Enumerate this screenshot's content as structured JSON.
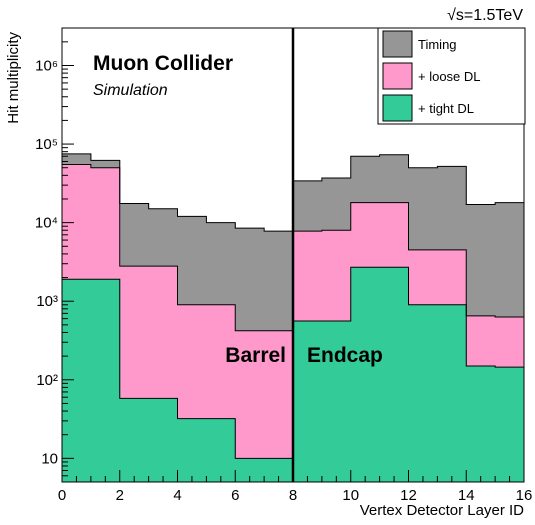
{
  "chart_data": {
    "type": "area",
    "title": "",
    "energy_label": "√s=1.5TeV",
    "experiment_label": "Muon Collider",
    "experiment_sublabel": "Simulation",
    "region_labels": [
      "Barrel",
      "Endcap"
    ],
    "xlabel": "Vertex Detector Layer ID",
    "ylabel": "Hit multiplicity",
    "xlim": [
      0,
      16
    ],
    "ylim": [
      5,
      3000000
    ],
    "yscale": "log",
    "x_ticks": [
      "0",
      "2",
      "4",
      "6",
      "8",
      "10",
      "12",
      "14",
      "16"
    ],
    "y_ticks": [
      "10",
      "10²",
      "10³",
      "10⁴",
      "10⁵",
      "10⁶"
    ],
    "grid": false,
    "legend_position": "top-right",
    "bin_edges": [
      0,
      1,
      2,
      3,
      4,
      5,
      6,
      7,
      8,
      9,
      10,
      11,
      12,
      13,
      14,
      15,
      16
    ],
    "divider_x": 8,
    "series": [
      {
        "name": "Timing",
        "color": "#969696",
        "values": [
          75000,
          62000,
          17500,
          15000,
          12000,
          10000,
          8500,
          7800,
          34000,
          37000,
          70000,
          73000,
          50000,
          52000,
          17000,
          18000
        ]
      },
      {
        "name": "+ loose DL",
        "color": "#ff99cc",
        "values": [
          55000,
          50000,
          2800,
          2800,
          900,
          900,
          420,
          420,
          7800,
          8000,
          18000,
          18000,
          4500,
          4500,
          650,
          630
        ]
      },
      {
        "name": "+ tight DL",
        "color": "#33cc99",
        "values": [
          1900,
          1900,
          58,
          58,
          32,
          32,
          10,
          10,
          560,
          560,
          2700,
          2700,
          900,
          900,
          150,
          145
        ]
      }
    ]
  }
}
